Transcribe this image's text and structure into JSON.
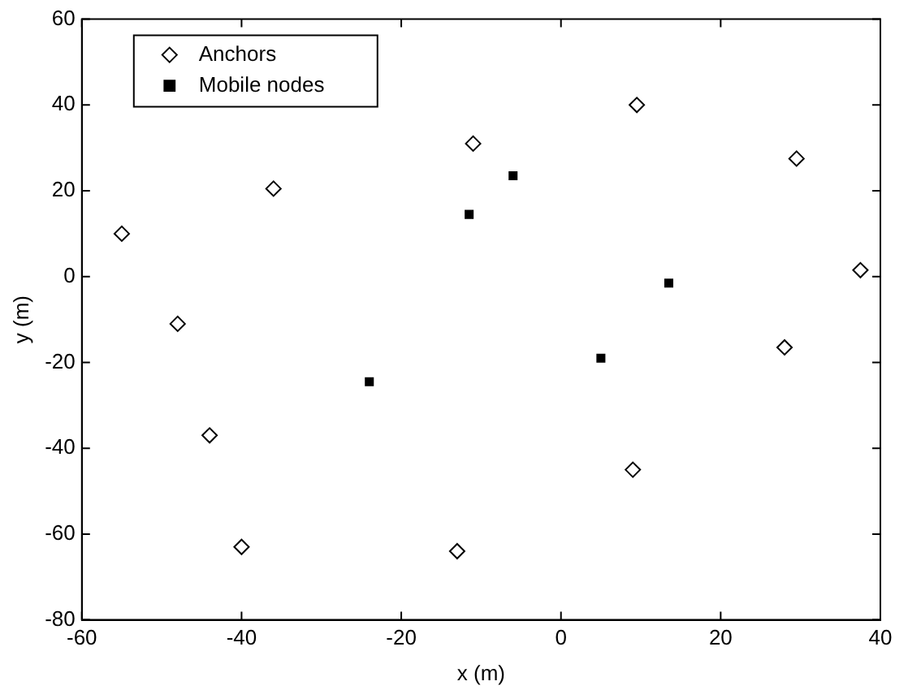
{
  "chart_data": {
    "type": "scatter",
    "xlabel": "x (m)",
    "ylabel": "y (m)",
    "xlim": [
      -60,
      40
    ],
    "xticks": [
      -60,
      -40,
      -20,
      0,
      20,
      40
    ],
    "ylim": [
      -80,
      60
    ],
    "yticks": [
      -80,
      -60,
      -40,
      -20,
      0,
      20,
      40,
      60
    ],
    "grid": false,
    "legend": "top left",
    "series": [
      {
        "name": "Anchors",
        "color": "#000000",
        "marker": "diamond",
        "x": [
          -55,
          -48,
          -44,
          -40,
          -36,
          -13,
          -11,
          9,
          9.5,
          28,
          29.5,
          37.5
        ],
        "values": [
          10,
          -11,
          -37,
          -63,
          20.5,
          -64,
          31,
          -45,
          40,
          -16.5,
          27.5,
          1.5
        ]
      },
      {
        "name": "Mobile nodes",
        "color": "#000000",
        "marker": "square",
        "x": [
          -24,
          -11.5,
          -6,
          5,
          13.5
        ],
        "values": [
          -24.5,
          14.5,
          23.5,
          -19,
          -1.5
        ]
      }
    ]
  }
}
